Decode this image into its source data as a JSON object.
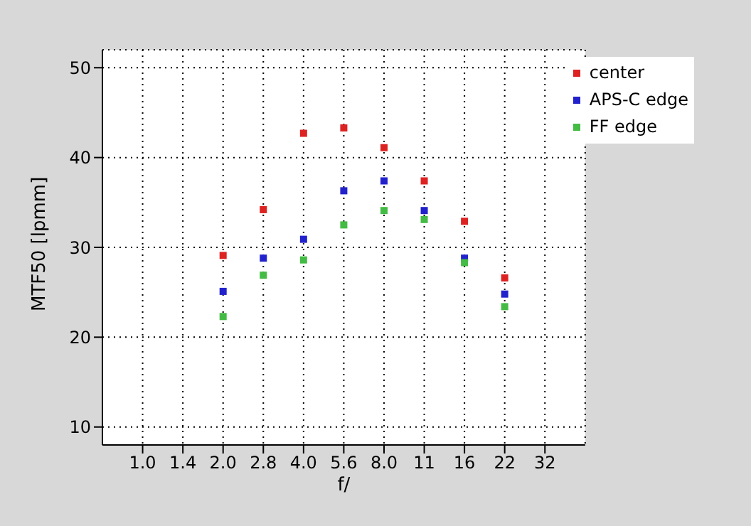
{
  "chart_data": {
    "type": "scatter",
    "xlabel": "f/",
    "ylabel": "MTF50 [lpmm]",
    "categories": [
      "1.0",
      "1.4",
      "2.0",
      "2.8",
      "4.0",
      "5.6",
      "8.0",
      "11",
      "16",
      "22",
      "32"
    ],
    "series": [
      {
        "name": "center",
        "color": "#dd2222",
        "values": [
          null,
          null,
          29.1,
          34.2,
          42.7,
          43.3,
          41.1,
          37.4,
          32.9,
          26.6,
          null
        ]
      },
      {
        "name": "APS-C edge",
        "color": "#2222cc",
        "values": [
          null,
          null,
          25.1,
          28.8,
          30.9,
          36.3,
          37.4,
          34.1,
          28.8,
          24.8,
          null
        ]
      },
      {
        "name": "FF edge",
        "color": "#44bb44",
        "values": [
          null,
          null,
          22.3,
          26.9,
          28.6,
          32.5,
          34.1,
          33.1,
          28.3,
          23.4,
          null
        ]
      }
    ],
    "ylim": [
      8,
      52
    ],
    "yticks": [
      10,
      20,
      30,
      40,
      50
    ],
    "grid": true,
    "legend": "top right",
    "marker": "square"
  }
}
